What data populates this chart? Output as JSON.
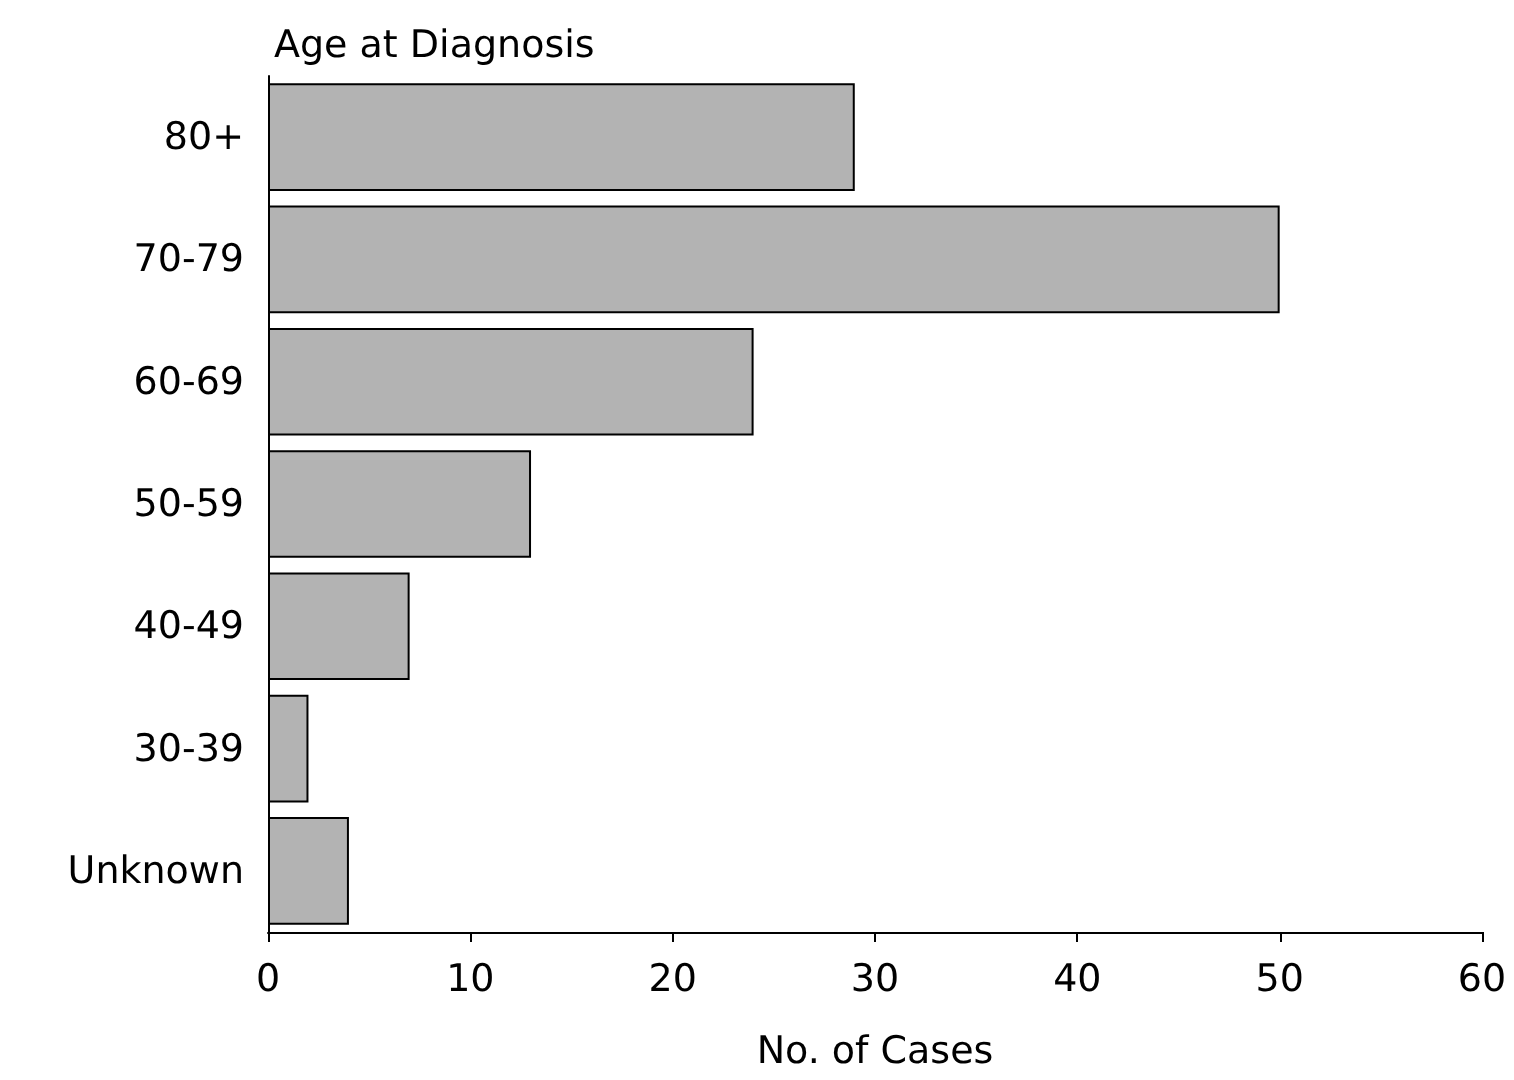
{
  "chart_data": {
    "type": "bar",
    "orientation": "horizontal",
    "ylabel": "Age at Diagnosis",
    "xlabel": "No. of Cases",
    "categories": [
      "80+",
      "70-79",
      "60-69",
      "50-59",
      "40-49",
      "30-39",
      "Unknown"
    ],
    "values": [
      29,
      50,
      24,
      13,
      7,
      2,
      4
    ],
    "color": "#b3b3b3",
    "xlim": [
      0,
      60
    ],
    "xticks": [
      0,
      10,
      20,
      30,
      40,
      50,
      60
    ],
    "grid": false
  }
}
